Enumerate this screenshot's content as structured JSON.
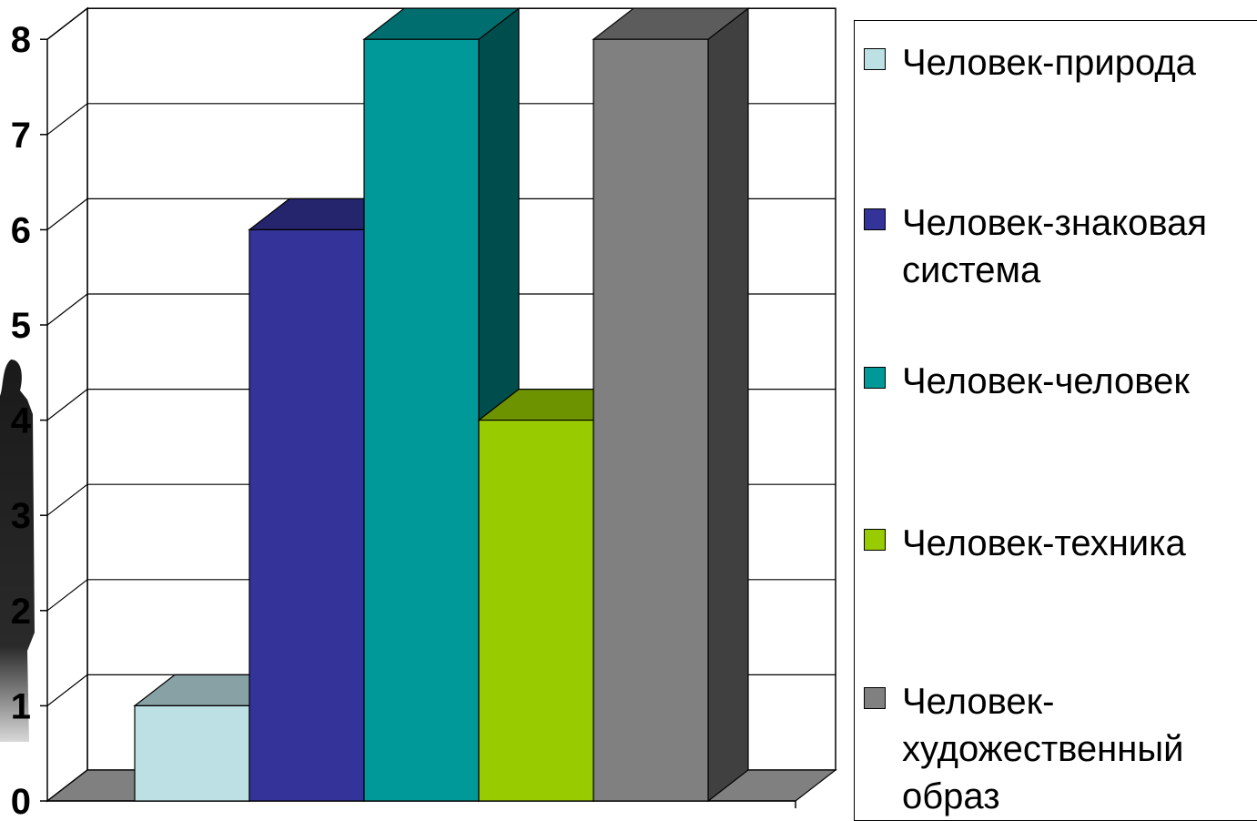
{
  "chart_data": {
    "type": "bar",
    "three_d": true,
    "y_ticks": [
      "0",
      "1",
      "2",
      "3",
      "4",
      "5",
      "6",
      "7",
      "8"
    ],
    "ylim": [
      0,
      8
    ],
    "grid": true,
    "legend_position": "right",
    "series": [
      {
        "name": "Человек-природа",
        "value": 1,
        "color": "#bce0e4"
      },
      {
        "name": "Человек-знаковая система",
        "value": 6,
        "color": "#333399"
      },
      {
        "name": "Человек-человек",
        "value": 8,
        "color": "#009999"
      },
      {
        "name": "Человек-техника",
        "value": 4,
        "color": "#99cc00"
      },
      {
        "name": "Человек-художественный образ",
        "value": 8,
        "color": "#808080"
      }
    ]
  },
  "legend": {
    "items": [
      {
        "lines": [
          "Человек-природа"
        ]
      },
      {
        "lines": [
          "Человек-знаковая",
          "система"
        ]
      },
      {
        "lines": [
          "Человек-человек"
        ]
      },
      {
        "lines": [
          "Человек-техника"
        ]
      },
      {
        "lines": [
          "Человек-",
          "художественный",
          "образ"
        ]
      }
    ]
  }
}
